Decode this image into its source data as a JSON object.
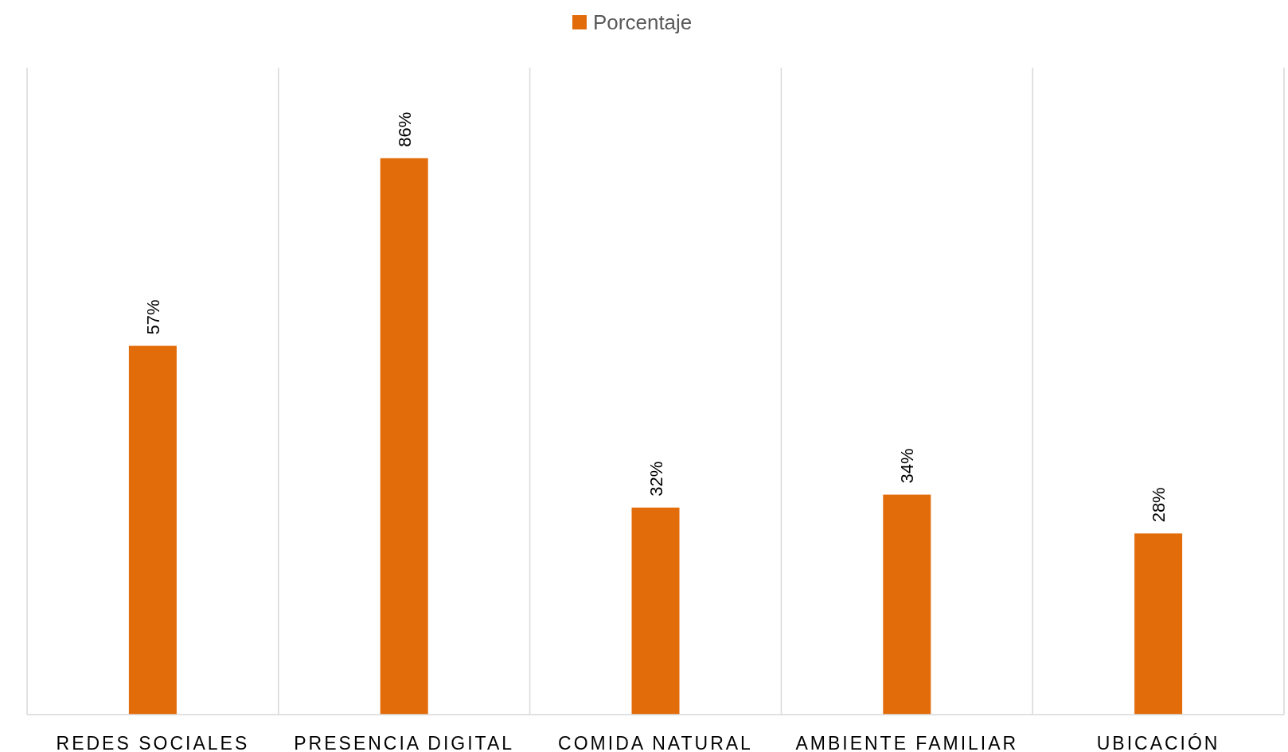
{
  "chart_data": {
    "type": "bar",
    "categories": [
      "REDES SOCIALES",
      "PRESENCIA DIGITAL",
      "COMIDA NATURAL",
      "AMBIENTE FAMILIAR",
      "UBICACIÓN"
    ],
    "series": [
      {
        "name": "Porcentaje",
        "color": "#e36c0a",
        "values": [
          57,
          86,
          32,
          34,
          28
        ],
        "value_labels": [
          "57%",
          "86%",
          "32%",
          "34%",
          "28%"
        ]
      }
    ],
    "ylim": [
      0,
      100
    ],
    "grid": "x",
    "legend": "top",
    "tick_labels": "x"
  }
}
